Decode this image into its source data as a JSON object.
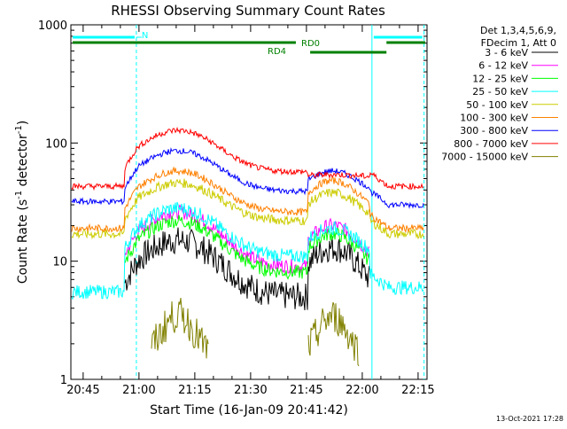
{
  "chart_data": {
    "type": "line",
    "title": "RHESSI Observing Summary Count Rates",
    "xlabel": "Start Time (16-Jan-09 20:41:42)",
    "ylabel": "Count Rate (s",
    "ylabel_sup1": "-1",
    "ylabel_mid": " detector",
    "ylabel_sup2": "-1",
    "ylabel_end": ")",
    "yscale": "log",
    "ylim": [
      1,
      1000
    ],
    "xlim_minutes": [
      20.7,
      22.3
    ],
    "x_ticks": [
      {
        "label": "20:45",
        "value": 20.75
      },
      {
        "label": "21:00",
        "value": 21.0
      },
      {
        "label": "21:15",
        "value": 21.25
      },
      {
        "label": "21:30",
        "value": 21.5
      },
      {
        "label": "21:45",
        "value": 21.75
      },
      {
        "label": "22:00",
        "value": 22.0
      },
      {
        "label": "22:15",
        "value": 22.25
      }
    ],
    "y_ticks": [
      {
        "label": "1",
        "value": 1
      },
      {
        "label": "10",
        "value": 10
      },
      {
        "label": "100",
        "value": 100
      },
      {
        "label": "1000",
        "value": 1000
      }
    ],
    "legend_header": [
      "Det 1,3,4,5,6,9,",
      "FDecim 1, Att 0"
    ],
    "legend_placement": "right",
    "series": [
      {
        "name": "3 - 6 keV",
        "color": "#000000"
      },
      {
        "name": "6 - 12 keV",
        "color": "#ff00ff"
      },
      {
        "name": "12 - 25 keV",
        "color": "#00ff00"
      },
      {
        "name": "25 - 50 keV",
        "color": "#00ffff"
      },
      {
        "name": "50 - 100 keV",
        "color": "#cccc00"
      },
      {
        "name": "100 - 300 keV",
        "color": "#ff8000"
      },
      {
        "name": "300 - 800 keV",
        "color": "#0000ff"
      },
      {
        "name": "800 - 7000 keV",
        "color": "#ff0000"
      },
      {
        "name": "7000 - 15000 keV",
        "color": "#808000"
      }
    ],
    "annotations": {
      "N_label": "N",
      "RD0_label": "RD0",
      "RD4_label": "RD4",
      "night_color": "#00ffff",
      "rd_color": "#008000"
    },
    "footer_date": "13-Oct-2021 17:28"
  }
}
